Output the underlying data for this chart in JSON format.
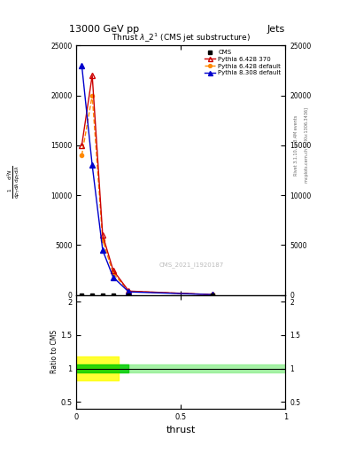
{
  "title_top": "13000 GeV pp",
  "title_right": "Jets",
  "plot_title": "Thrust $\\lambda$_2$^1$ (CMS jet substructure)",
  "xlabel": "thrust",
  "ylabel_ratio": "Ratio to CMS",
  "watermark": "CMS_2021_I1920187",
  "rivet_label": "Rivet 3.1.10, ≥ 3.4M events",
  "mcplots_label": "mcplots.cern.ch [arXiv:1306.3436]",
  "pythia6_370_x": [
    0.025,
    0.075,
    0.125,
    0.175,
    0.25,
    0.65
  ],
  "pythia6_370_y": [
    15000,
    22000,
    6000,
    2500,
    400,
    50
  ],
  "pythia6_default_x": [
    0.025,
    0.075,
    0.125,
    0.175,
    0.25,
    0.65
  ],
  "pythia6_default_y": [
    14000,
    20000,
    5500,
    2200,
    380,
    50
  ],
  "pythia8_default_x": [
    0.025,
    0.075,
    0.125,
    0.175,
    0.25,
    0.65
  ],
  "pythia8_default_y": [
    23000,
    13000,
    4500,
    1800,
    320,
    50
  ],
  "cms_x": [
    0.025,
    0.075,
    0.125,
    0.175,
    0.25,
    0.65
  ],
  "cms_y": [
    0.5,
    0.5,
    0.5,
    0.5,
    0.5,
    0.5
  ],
  "color_cms": "#000000",
  "color_p6_370": "#cc0000",
  "color_p6_default": "#ff8800",
  "color_p8_default": "#0000cc",
  "ylim_main": [
    0,
    25000
  ],
  "ylim_ratio": [
    0.4,
    2.1
  ],
  "xlim": [
    0.0,
    1.0
  ],
  "yticks_main": [
    0,
    5000,
    10000,
    15000,
    20000,
    25000
  ],
  "ytick_labels_main": [
    "0",
    "5000",
    "10000",
    "15000",
    "20000",
    "25000"
  ],
  "yticks_ratio": [
    0.5,
    1.0,
    1.5,
    2.0
  ],
  "ytick_labels_ratio": [
    "0.5",
    "1",
    "1.5",
    "2"
  ],
  "xticks": [
    0,
    0.5,
    1.0
  ],
  "xtick_labels": [
    "0",
    "0.5",
    "1"
  ]
}
